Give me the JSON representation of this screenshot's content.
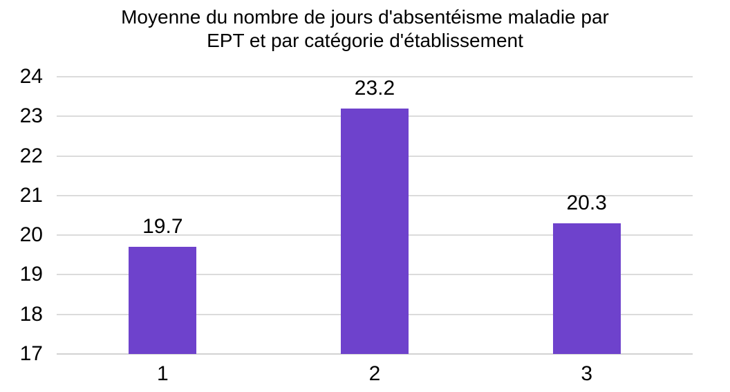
{
  "page": {
    "background": "#FFFFFF"
  },
  "chart_data": {
    "type": "bar",
    "title": "Moyenne du nombre de jours d'absentéisme maladie par EPT et par catégorie d'établissement",
    "title_lines": [
      "Moyenne du nombre de jours d'absentéisme maladie par",
      "EPT et par catégorie d'établissement"
    ],
    "categories": [
      "1",
      "2",
      "3"
    ],
    "values": [
      19.7,
      23.2,
      20.3
    ],
    "data_labels": [
      "19.7",
      "23.2",
      "20.3"
    ],
    "xlabel": "",
    "ylabel": "",
    "ylim": [
      17,
      24
    ],
    "y_ticks": [
      17,
      18,
      19,
      20,
      21,
      22,
      23,
      24
    ],
    "grid": "horizontal",
    "legend": "none",
    "bar_color": "#6E42CC",
    "gridline_color": "#DBDBDB",
    "axis_line_color": "#D2D2D2",
    "text_color": "#000000"
  }
}
